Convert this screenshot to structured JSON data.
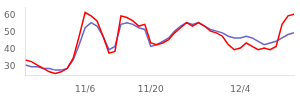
{
  "chart_data": {
    "type": "line",
    "x": [
      0,
      1,
      2,
      3,
      4,
      5,
      6,
      7,
      8,
      9,
      10,
      11,
      12,
      13,
      14,
      15,
      16,
      17,
      18,
      19,
      20,
      21,
      22,
      23,
      24,
      25,
      26,
      27,
      28,
      29,
      30,
      31,
      32,
      33,
      34,
      35,
      36,
      37,
      38,
      39,
      40,
      41,
      42,
      43,
      44,
      45
    ],
    "series": [
      {
        "color": "#ff0000",
        "values": [
          34,
          33,
          31,
          29,
          27,
          26,
          27,
          29,
          35,
          48,
          62,
          60,
          57,
          48,
          38,
          39,
          60,
          59,
          57,
          54,
          55,
          44,
          43,
          44,
          46,
          50,
          53,
          56,
          54,
          56,
          54,
          51,
          50,
          48,
          43,
          40,
          41,
          44,
          42,
          40,
          41,
          40,
          42,
          55,
          60,
          61
        ]
      },
      {
        "color": "#6666cc",
        "values": [
          31,
          30,
          30,
          29,
          29,
          28,
          28,
          29,
          34,
          43,
          53,
          56,
          54,
          48,
          40,
          42,
          55,
          56,
          55,
          53,
          52,
          42,
          43,
          45,
          47,
          51,
          54,
          56,
          55,
          56,
          54,
          52,
          51,
          50,
          48,
          47,
          47,
          48,
          47,
          45,
          43,
          44,
          45,
          47,
          49,
          50
        ]
      }
    ],
    "xlim": [
      0,
      45
    ],
    "xticks": [
      {
        "value": 10,
        "label": "11/6"
      },
      {
        "value": 21,
        "label": "11/20"
      },
      {
        "value": 36,
        "label": "12/4"
      }
    ],
    "ylim": [
      25,
      65
    ],
    "yticks": [
      30,
      40,
      50,
      60
    ],
    "grid": false
  }
}
